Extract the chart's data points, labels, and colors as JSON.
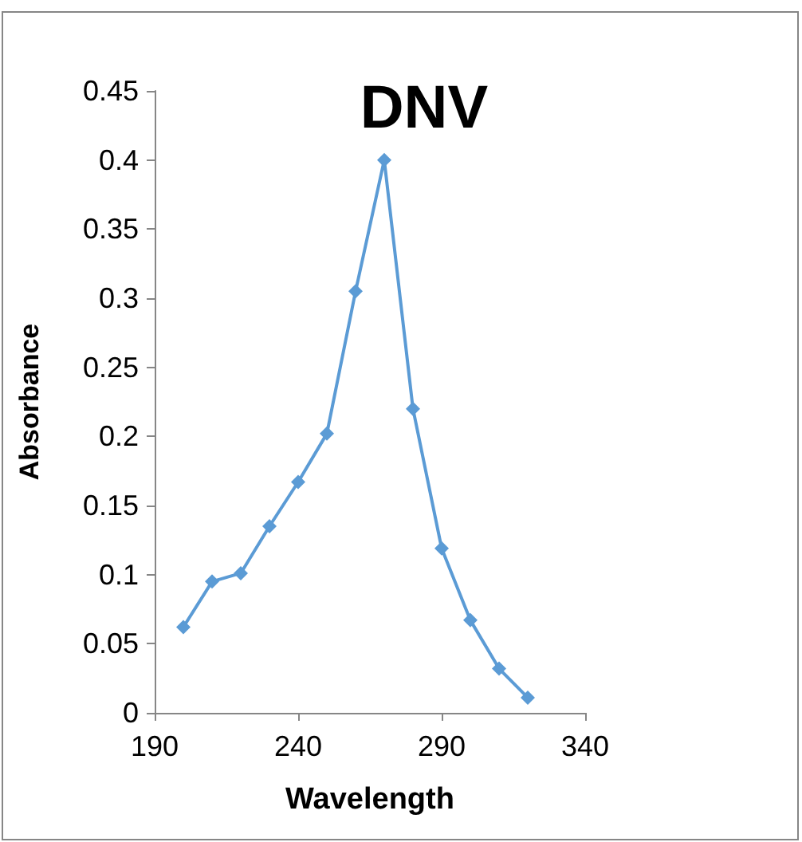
{
  "chart_data": {
    "type": "line",
    "title": "DNV",
    "xlabel": "Wavelength",
    "ylabel": "Absorbance",
    "x": [
      200,
      210,
      220,
      230,
      240,
      250,
      260,
      270,
      280,
      290,
      300,
      310,
      320
    ],
    "series": [
      {
        "color": "#5b9bd5",
        "values": [
          0.062,
          0.095,
          0.101,
          0.135,
          0.167,
          0.202,
          0.305,
          0.4,
          0.22,
          0.119,
          0.067,
          0.032,
          0.011
        ]
      }
    ],
    "xlim": [
      190,
      340
    ],
    "xticks": [
      190,
      240,
      290,
      340
    ],
    "ylim": [
      0,
      0.45
    ],
    "yticks": [
      0,
      0.05,
      0.1,
      0.15,
      0.2,
      0.25,
      0.3,
      0.35,
      0.4,
      0.45
    ],
    "grid": false,
    "marker": "diamond",
    "line_style": "solid"
  }
}
